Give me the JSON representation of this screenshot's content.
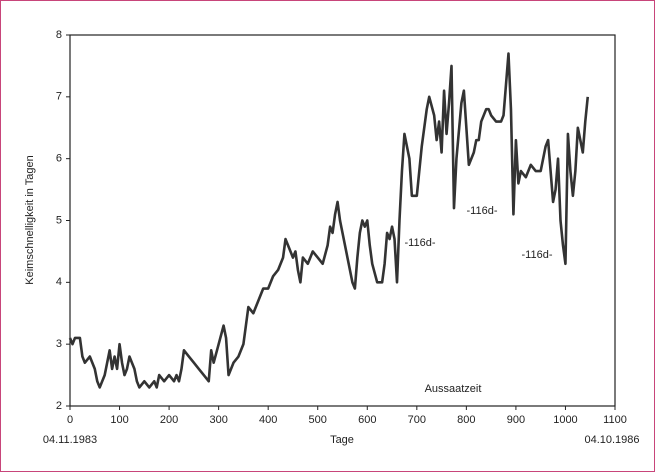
{
  "chart_data": {
    "type": "line",
    "xlabel": "Tage",
    "ylabel": "Keimschnelligkeit in Tagen",
    "date_labels": [
      "04.11.1983",
      "04.10.1986"
    ],
    "annotations": [
      "-116d-",
      "-116d-",
      "-116d-",
      "Aussaatzeit"
    ],
    "xlim": [
      0,
      1100
    ],
    "ylim": [
      2,
      8
    ],
    "xticks": [
      0,
      100,
      200,
      300,
      400,
      500,
      600,
      700,
      800,
      900,
      1000,
      1100
    ],
    "yticks": [
      2,
      3,
      4,
      5,
      6,
      7,
      8
    ],
    "grid": false,
    "series": [
      {
        "color": "#333333",
        "x": [
          0,
          5,
          10,
          20,
          25,
          30,
          40,
          50,
          55,
          60,
          70,
          75,
          80,
          85,
          90,
          95,
          100,
          105,
          110,
          115,
          120,
          125,
          130,
          135,
          140,
          150,
          160,
          170,
          175,
          180,
          190,
          200,
          210,
          215,
          220,
          225,
          230,
          240,
          250,
          260,
          270,
          280,
          285,
          290,
          300,
          310,
          315,
          320,
          330,
          340,
          350,
          355,
          360,
          370,
          380,
          390,
          400,
          410,
          420,
          430,
          435,
          440,
          450,
          455,
          460,
          465,
          470,
          480,
          490,
          500,
          510,
          520,
          525,
          530,
          535,
          540,
          545,
          550,
          555,
          560,
          570,
          575,
          580,
          585,
          590,
          595,
          600,
          605,
          610,
          620,
          630,
          635,
          640,
          645,
          650,
          655,
          660,
          665,
          670,
          675,
          680,
          685,
          690,
          700,
          710,
          720,
          725,
          735,
          740,
          745,
          750,
          755,
          760,
          765,
          770,
          775,
          780,
          790,
          795,
          800,
          805,
          815,
          820,
          825,
          830,
          840,
          845,
          850,
          860,
          870,
          875,
          880,
          885,
          890,
          895,
          900,
          905,
          910,
          920,
          930,
          940,
          950,
          960,
          965,
          970,
          975,
          980,
          985,
          990,
          995,
          1000,
          1005,
          1010,
          1015,
          1020,
          1025,
          1035,
          1040,
          1045
        ],
        "values": [
          3.1,
          3.0,
          3.1,
          3.1,
          2.8,
          2.7,
          2.8,
          2.6,
          2.4,
          2.3,
          2.5,
          2.7,
          2.9,
          2.6,
          2.8,
          2.6,
          3.0,
          2.7,
          2.5,
          2.6,
          2.8,
          2.7,
          2.6,
          2.4,
          2.3,
          2.4,
          2.3,
          2.4,
          2.3,
          2.5,
          2.4,
          2.5,
          2.4,
          2.5,
          2.4,
          2.6,
          2.9,
          2.8,
          2.7,
          2.6,
          2.5,
          2.4,
          2.9,
          2.7,
          3.0,
          3.3,
          3.1,
          2.5,
          2.7,
          2.8,
          3.0,
          3.3,
          3.6,
          3.5,
          3.7,
          3.9,
          3.9,
          4.1,
          4.2,
          4.4,
          4.7,
          4.6,
          4.4,
          4.5,
          4.2,
          4.0,
          4.4,
          4.3,
          4.5,
          4.4,
          4.3,
          4.6,
          4.9,
          4.8,
          5.1,
          5.3,
          5.0,
          4.8,
          4.6,
          4.4,
          4.0,
          3.9,
          4.4,
          4.8,
          5.0,
          4.9,
          5.0,
          4.6,
          4.3,
          4.0,
          4.0,
          4.3,
          4.8,
          4.7,
          4.9,
          4.7,
          4.0,
          5.0,
          5.8,
          6.4,
          6.2,
          6.0,
          5.4,
          5.4,
          6.2,
          6.8,
          7.0,
          6.7,
          6.3,
          6.6,
          6.1,
          7.1,
          6.4,
          6.9,
          7.5,
          5.2,
          6.0,
          6.9,
          7.1,
          6.5,
          5.9,
          6.1,
          6.3,
          6.3,
          6.6,
          6.8,
          6.8,
          6.7,
          6.6,
          6.6,
          6.7,
          7.2,
          7.7,
          6.8,
          5.1,
          6.3,
          5.6,
          5.8,
          5.7,
          5.9,
          5.8,
          5.8,
          6.2,
          6.3,
          5.8,
          5.3,
          5.5,
          6.0,
          5.0,
          4.6,
          4.3,
          6.4,
          5.8,
          5.4,
          5.8,
          6.5,
          6.1,
          6.6,
          7.0
        ]
      }
    ]
  }
}
